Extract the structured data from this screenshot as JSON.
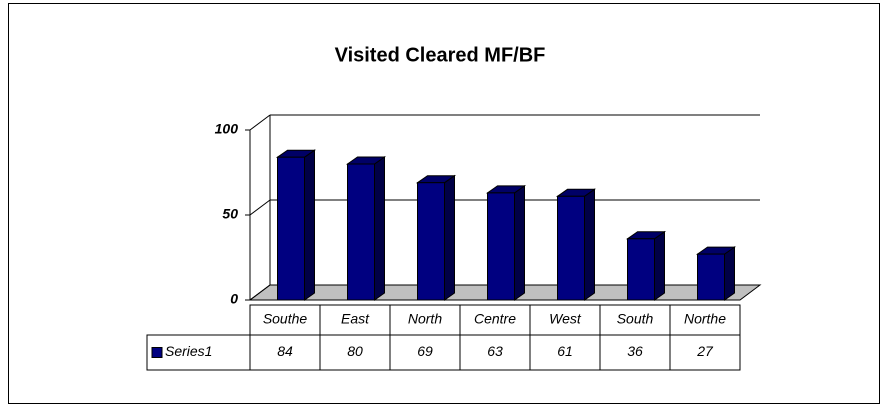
{
  "chart_data": {
    "type": "bar",
    "title": "Visited Cleared MF/BF",
    "categories": [
      "Southe",
      "East",
      "North",
      "Centre",
      "West",
      "South",
      "Northe"
    ],
    "series": [
      {
        "name": "Series1",
        "color": "#000080",
        "values": [
          84,
          80,
          69,
          63,
          61,
          36,
          27
        ]
      }
    ],
    "ylim": [
      0,
      100
    ],
    "yticks": [
      0,
      50,
      100
    ],
    "grid": true,
    "data_table": true
  }
}
